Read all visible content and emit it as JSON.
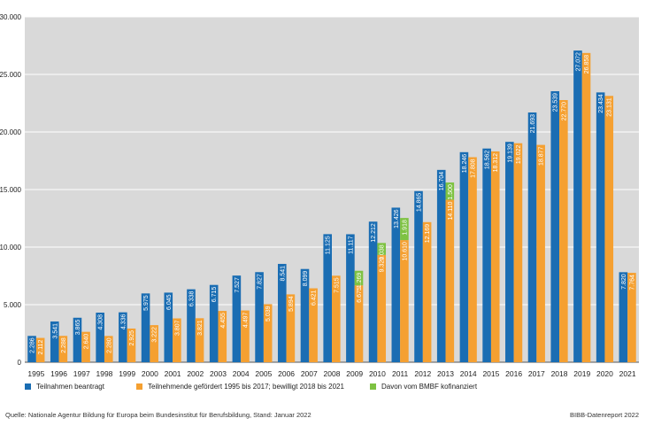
{
  "chart_data": {
    "type": "bar",
    "title": "",
    "xlabel": "",
    "ylabel": "",
    "ylim": [
      0,
      30000
    ],
    "yticks": [
      "0",
      "5.000",
      "10.000",
      "15.000",
      "20.000",
      "25.000",
      "30.000"
    ],
    "ytick_values": [
      0,
      5000,
      10000,
      15000,
      20000,
      25000,
      30000
    ],
    "grid": true,
    "categories": [
      "1995",
      "1996",
      "1997",
      "1998",
      "1999",
      "2000",
      "2001",
      "2002",
      "2003",
      "2004",
      "2005",
      "2006",
      "2007",
      "2008",
      "2009",
      "2010",
      "2011",
      "2012",
      "2013",
      "2014",
      "2015",
      "2016",
      "2017",
      "2018",
      "2019",
      "2020",
      "2021"
    ],
    "series": [
      {
        "name": "Teilnahmen beantragt",
        "color": "#1a6db3",
        "values": [
          2286,
          3541,
          3865,
          4308,
          4336,
          5975,
          6045,
          6338,
          6715,
          7527,
          7827,
          8541,
          8099,
          11125,
          11117,
          12212,
          13426,
          14865,
          16704,
          18246,
          18562,
          19139,
          21693,
          23539,
          27072,
          23434,
          7820
        ],
        "labels": [
          "2.286",
          "3.541",
          "3.865",
          "4.308",
          "4.336",
          "5.975",
          "6.045",
          "6.338",
          "6.715",
          "7.527",
          "7.827",
          "8.541",
          "8.099",
          "11.125",
          "11.117",
          "12.212",
          "13.426",
          "14.865",
          "16.704",
          "18.246",
          "18.562",
          "19.139",
          "21.693",
          "23.539",
          "27.072",
          "23.434",
          "7.820"
        ]
      },
      {
        "name": "Teilnehmende gefördert 1995 bis 2017; bewilligt 2018 bis 2021",
        "color": "#f5a031",
        "values": [
          2112,
          2288,
          2640,
          2280,
          2925,
          3222,
          3807,
          3821,
          4455,
          4497,
          5039,
          5894,
          6421,
          7515,
          6675,
          9320,
          10610,
          12169,
          14110,
          17808,
          18312,
          19022,
          18877,
          22770,
          26858,
          23131,
          7764
        ],
        "labels": [
          "2.112",
          "2.288",
          "2.640",
          "2.280",
          "2.925",
          "3.222",
          "3.807",
          "3.821",
          "4.455",
          "4.497",
          "5.039",
          "5.894",
          "6.421",
          "7.515",
          "6.675",
          "9.320",
          "10.610",
          "12.169",
          "14.110",
          "17.808",
          "18.312",
          "19.022",
          "18.877",
          "22.770",
          "26.858",
          "23.131",
          "7.764"
        ]
      },
      {
        "name": "Davon vom BMBF kofinanziert",
        "color": "#7ec242",
        "stacked_on_series": 1,
        "values": [
          null,
          null,
          null,
          null,
          null,
          null,
          null,
          null,
          null,
          null,
          null,
          null,
          null,
          null,
          1269,
          1038,
          1918,
          null,
          1500,
          null,
          null,
          null,
          null,
          null,
          null,
          null,
          null
        ],
        "labels": [
          null,
          null,
          null,
          null,
          null,
          null,
          null,
          null,
          null,
          null,
          null,
          null,
          null,
          null,
          "1.269",
          "1.038",
          "1.918",
          null,
          "1.500",
          null,
          null,
          null,
          null,
          null,
          null,
          null,
          null
        ]
      }
    ],
    "legend_position": "bottom"
  },
  "legend": {
    "item1": "Teilnahmen beantragt",
    "item2": "Teilnehmende gefördert 1995 bis 2017; bewilligt 2018 bis 2021",
    "item3": "Davon vom BMBF kofinanziert"
  },
  "footer": {
    "source": "Quelle: Nationale Agentur Bildung für Europa beim Bundesinstitut für Berufsbildung, Stand: Januar 2022",
    "credit": "BIBB-Datenreport 2022"
  }
}
